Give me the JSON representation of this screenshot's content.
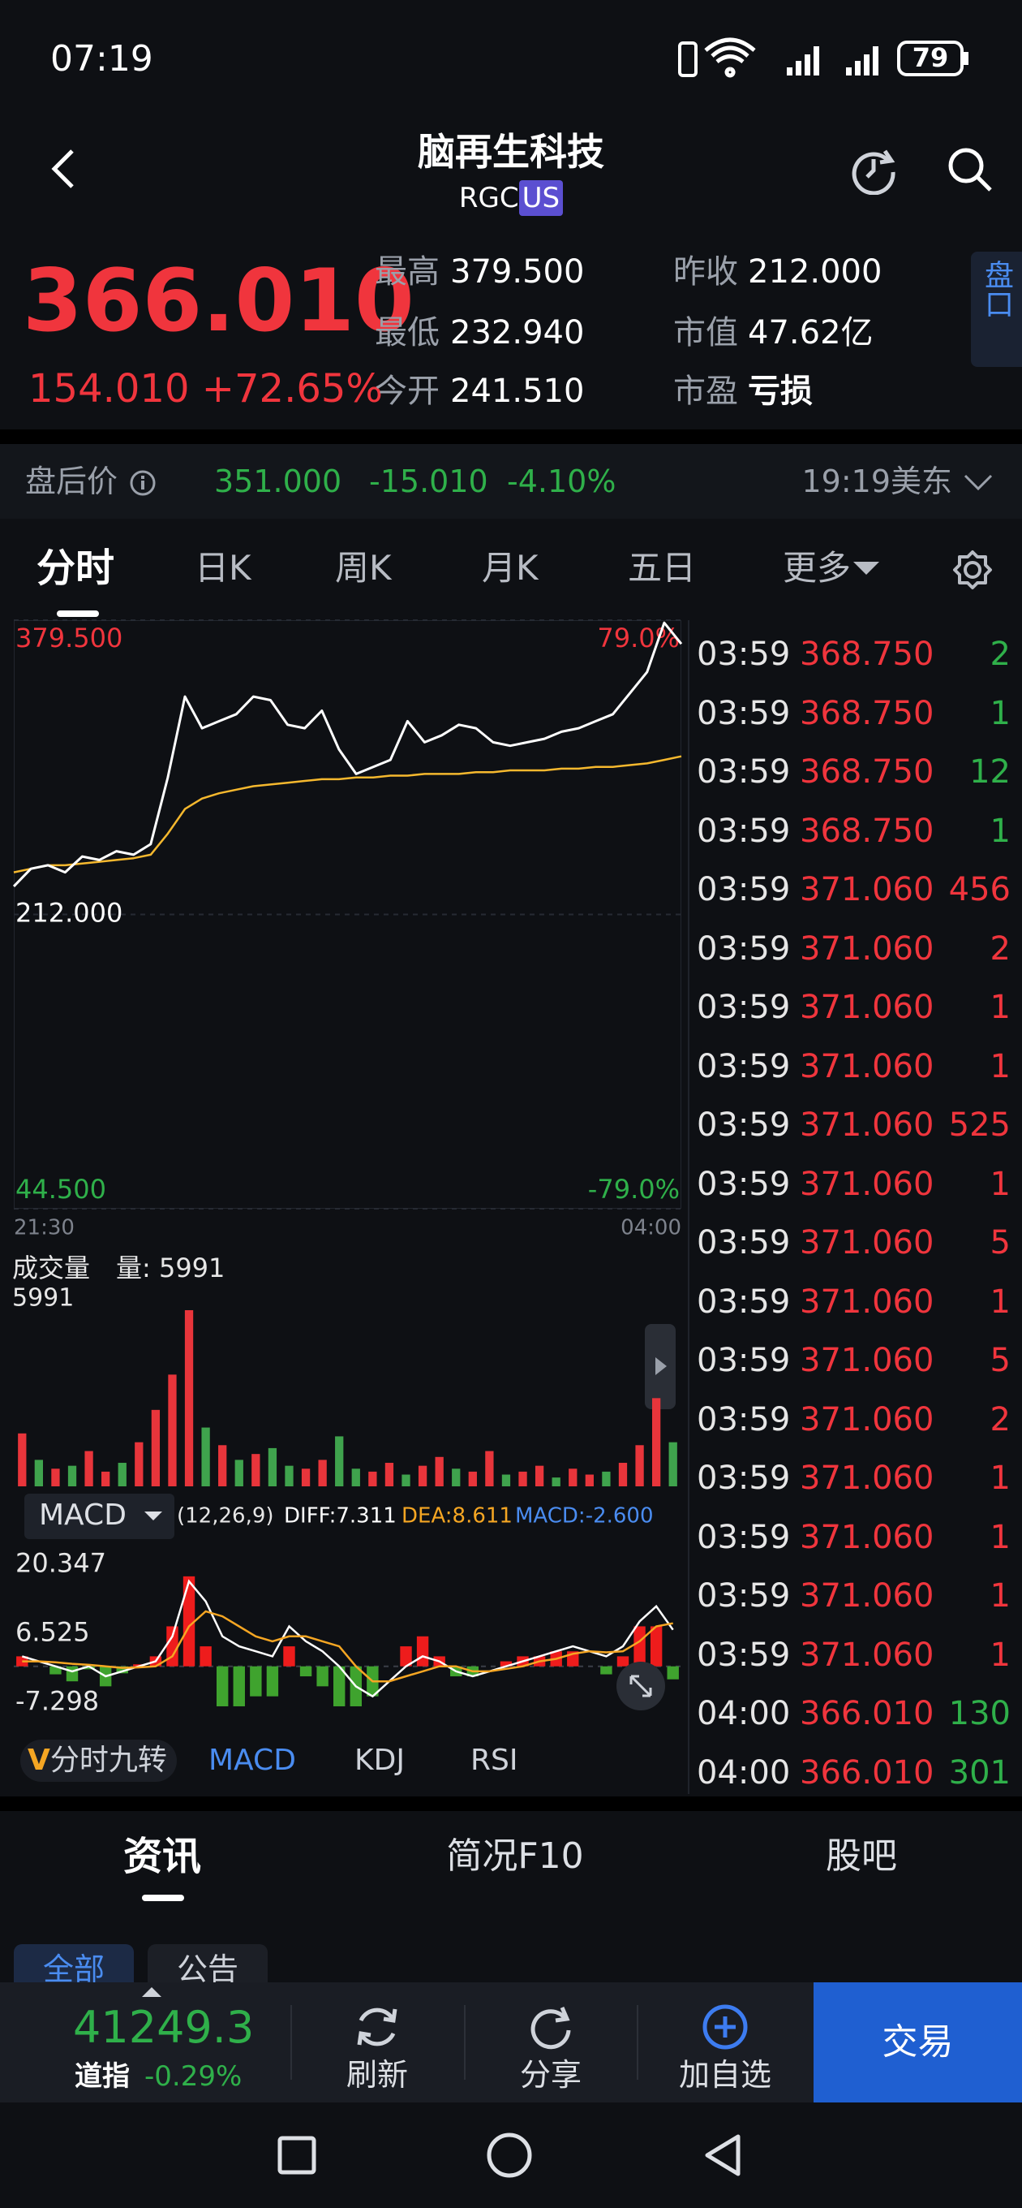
{
  "status_bar": {
    "time": "07:19",
    "battery": "79"
  },
  "header": {
    "title": "脑再生科技",
    "symbol": "RGC",
    "market": "US"
  },
  "quote": {
    "price": "366.010",
    "change": "154.010",
    "change_pct": "+72.65%",
    "stats": [
      [
        "最高",
        "379.500"
      ],
      [
        "最低",
        "232.940"
      ],
      [
        "今开",
        "241.510"
      ],
      [
        "昨收",
        "212.000"
      ],
      [
        "市值",
        "47.62亿"
      ],
      [
        "市盈",
        "亏损"
      ]
    ],
    "side_button": "盘口"
  },
  "after_hours": {
    "label": "盘后价",
    "price": "351.000",
    "change": "-15.010",
    "change_pct": "-4.10%",
    "time": "19:19美东"
  },
  "tabs": [
    "分时",
    "日K",
    "周K",
    "月K",
    "五日",
    "更多"
  ],
  "chart_data": [
    {
      "type": "line",
      "categories": [
        "21:30",
        null,
        null,
        null,
        null,
        null,
        null,
        null,
        null,
        null,
        null,
        null,
        null,
        null,
        null,
        null,
        null,
        null,
        null,
        null,
        null,
        null,
        null,
        null,
        null,
        null,
        null,
        null,
        null,
        null,
        null,
        null,
        null,
        null,
        null,
        null,
        null,
        null,
        null,
        "04:00"
      ],
      "series": [
        {
          "color": "#ffffff",
          "values": [
            228,
            238,
            240,
            236,
            245,
            243,
            248,
            246,
            252,
            290,
            336,
            318,
            322,
            326,
            336,
            334,
            320,
            318,
            328,
            306,
            292,
            296,
            300,
            322,
            310,
            314,
            320,
            318,
            310,
            308,
            310,
            312,
            316,
            318,
            322,
            326,
            338,
            350,
            378,
            366.01
          ]
        },
        {
          "color": "#f5b82e",
          "values": [
            236,
            238,
            240,
            240,
            241,
            242,
            243,
            244,
            246,
            258,
            272,
            278,
            281,
            283,
            285,
            286,
            287,
            288,
            289,
            289,
            290,
            290,
            291,
            291,
            292,
            292,
            292,
            293,
            293,
            294,
            294,
            294,
            295,
            295,
            296,
            296,
            297,
            298,
            300,
            302
          ]
        }
      ],
      "ylim": [
        44.5,
        379.5
      ],
      "yticks": [
        {
          "value": 379.5,
          "label": "379.500",
          "color": "#f0353d"
        },
        {
          "value": 212,
          "label": "212.000",
          "color": "#ffffff"
        },
        {
          "value": 44.5,
          "label": "44.500",
          "color": "#2fb04a"
        }
      ],
      "y2lim": [
        -79,
        79
      ],
      "y2ticks": [
        {
          "value": 79,
          "label": "79.0%",
          "color": "#f0353d"
        },
        {
          "value": -79,
          "label": "-79.0%",
          "color": "#2fb04a"
        }
      ],
      "grid": true
    },
    {
      "type": "bar",
      "title": "成交量",
      "annotation": "量: 5991",
      "values": [
        1800,
        900,
        600,
        700,
        1200,
        500,
        800,
        1500,
        2600,
        3800,
        5991,
        2000,
        1400,
        900,
        1100,
        1300,
        700,
        600,
        900,
        1700,
        600,
        500,
        800,
        400,
        700,
        1000,
        600,
        500,
        1200,
        400,
        500,
        700,
        300,
        600,
        400,
        500,
        800,
        1400,
        3000,
        1500
      ],
      "colors": [
        "#e8353b",
        "#3fa34d",
        "#e8353b",
        "#3fa34d",
        "#e8353b",
        "#e8353b",
        "#3fa34d",
        "#e8353b",
        "#e8353b",
        "#e8353b",
        "#e8353b",
        "#3fa34d",
        "#e8353b",
        "#3fa34d",
        "#e8353b",
        "#3fa34d",
        "#3fa34d",
        "#e8353b",
        "#e8353b",
        "#3fa34d",
        "#3fa34d",
        "#e8353b",
        "#e8353b",
        "#3fa34d",
        "#e8353b",
        "#e8353b",
        "#3fa34d",
        "#e8353b",
        "#e8353b",
        "#3fa34d",
        "#e8353b",
        "#e8353b",
        "#3fa34d",
        "#e8353b",
        "#e8353b",
        "#3fa34d",
        "#e8353b",
        "#e8353b",
        "#e8353b",
        "#3fa34d"
      ],
      "ylim": [
        0,
        5991
      ],
      "yticks": [
        5991
      ],
      "grid": false
    },
    {
      "type": "macd",
      "title": "MACD",
      "params": "(12,26,9)",
      "series": [
        {
          "name": "DIFF:7.311",
          "color": "#ffffff",
          "values": [
            2,
            1,
            0,
            -1,
            0,
            -2,
            -1,
            0,
            1,
            6,
            17,
            13,
            6,
            4,
            3,
            2,
            8,
            5,
            3,
            0,
            -4,
            -6,
            -3,
            0,
            2,
            1,
            -1,
            -2,
            -1,
            0,
            1,
            2,
            3,
            4,
            3,
            2,
            4,
            9,
            12,
            7.311
          ]
        },
        {
          "name": "DEA:8.611",
          "color": "#f5a623",
          "values": [
            1,
            1,
            0.8,
            0.5,
            0.3,
            0,
            -0.3,
            -0.2,
            0,
            2,
            8,
            11,
            10,
            8,
            6,
            5,
            6,
            6,
            5,
            4,
            0,
            -3,
            -3,
            -2,
            -1,
            0,
            0,
            -1,
            -1,
            -0.5,
            0,
            1,
            1.5,
            2.5,
            3,
            2.8,
            3,
            5,
            8,
            8.611
          ]
        },
        {
          "name": "MACD:-2.600",
          "color": "#4a8cf0",
          "type": "histogram",
          "up_color": "#ee1c1c",
          "down_color": "#3fa32e",
          "values": [
            2,
            0,
            -1.6,
            -3,
            -0.6,
            -4,
            -1.4,
            0.4,
            2,
            8,
            18,
            4,
            -8,
            -8,
            -6,
            -6,
            4,
            -2,
            -4,
            -8,
            -8,
            -6,
            0,
            4,
            6,
            2,
            -2,
            -2,
            0,
            1,
            2,
            2,
            3,
            3,
            0,
            -1.6,
            2,
            8,
            8,
            -2.6
          ]
        }
      ],
      "ylim": [
        -10.6,
        24.8
      ],
      "yticks": [
        20.347,
        6.525,
        -7.298
      ],
      "grid": false
    }
  ],
  "trades": [
    {
      "time": "03:59",
      "price": "368.750",
      "volume": "2",
      "color": "#2fb04a"
    },
    {
      "time": "03:59",
      "price": "368.750",
      "volume": "1",
      "color": "#2fb04a"
    },
    {
      "time": "03:59",
      "price": "368.750",
      "volume": "12",
      "color": "#2fb04a"
    },
    {
      "time": "03:59",
      "price": "368.750",
      "volume": "1",
      "color": "#2fb04a"
    },
    {
      "time": "03:59",
      "price": "371.060",
      "volume": "456",
      "color": "#f0353d"
    },
    {
      "time": "03:59",
      "price": "371.060",
      "volume": "2",
      "color": "#f0353d"
    },
    {
      "time": "03:59",
      "price": "371.060",
      "volume": "1",
      "color": "#f0353d"
    },
    {
      "time": "03:59",
      "price": "371.060",
      "volume": "1",
      "color": "#f0353d"
    },
    {
      "time": "03:59",
      "price": "371.060",
      "volume": "525",
      "color": "#f0353d"
    },
    {
      "time": "03:59",
      "price": "371.060",
      "volume": "1",
      "color": "#f0353d"
    },
    {
      "time": "03:59",
      "price": "371.060",
      "volume": "5",
      "color": "#f0353d"
    },
    {
      "time": "03:59",
      "price": "371.060",
      "volume": "1",
      "color": "#f0353d"
    },
    {
      "time": "03:59",
      "price": "371.060",
      "volume": "5",
      "color": "#f0353d"
    },
    {
      "time": "03:59",
      "price": "371.060",
      "volume": "2",
      "color": "#f0353d"
    },
    {
      "time": "03:59",
      "price": "371.060",
      "volume": "1",
      "color": "#f0353d"
    },
    {
      "time": "03:59",
      "price": "371.060",
      "volume": "1",
      "color": "#f0353d"
    },
    {
      "time": "03:59",
      "price": "371.060",
      "volume": "1",
      "color": "#f0353d"
    },
    {
      "time": "03:59",
      "price": "371.060",
      "volume": "1",
      "color": "#f0353d"
    },
    {
      "time": "04:00",
      "price": "366.010",
      "volume": "130",
      "color": "#2fb04a"
    },
    {
      "time": "04:00",
      "price": "366.010",
      "volume": "301",
      "color": "#2fb04a"
    }
  ],
  "indicator_tabs": [
    "V分时九转",
    "MACD",
    "KDJ",
    "RSI"
  ],
  "sections": [
    "资讯",
    "简况F10",
    "股吧"
  ],
  "filters": [
    "全部",
    "公告"
  ],
  "footer": {
    "index_value": "41249.3",
    "index_name": "道指",
    "index_change": "-0.29%",
    "actions": [
      "刷新",
      "分享",
      "加自选"
    ],
    "trade": "交易"
  }
}
